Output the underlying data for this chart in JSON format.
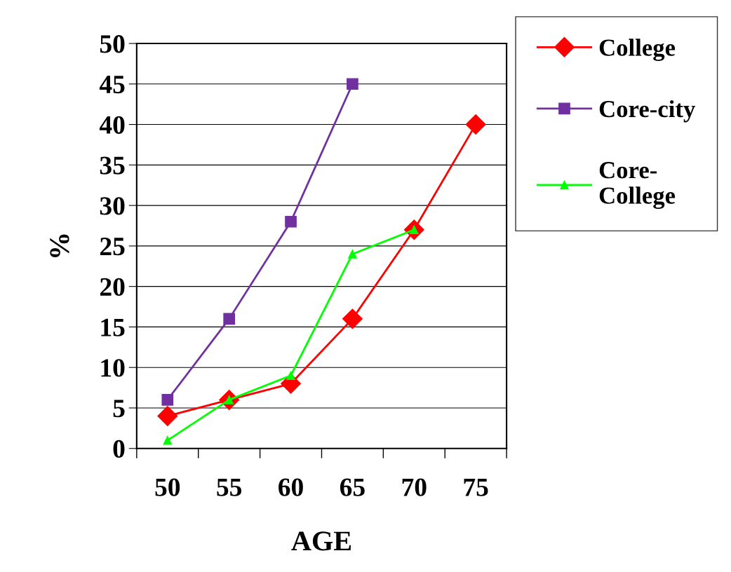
{
  "chart_data": {
    "type": "line",
    "xlabel": "AGE",
    "ylabel": "%",
    "categories": [
      "50",
      "55",
      "60",
      "65",
      "70",
      "75"
    ],
    "series": [
      {
        "name": "College",
        "color": "#ff0000",
        "marker": "diamond",
        "values": [
          4,
          6,
          8,
          16,
          27,
          40
        ]
      },
      {
        "name": "Core-city",
        "color": "#7030a0",
        "marker": "square",
        "values": [
          6,
          16,
          28,
          45,
          null,
          null
        ]
      },
      {
        "name": "Core-\nCollege",
        "color": "#00ff00",
        "marker": "triangle",
        "values": [
          1,
          6,
          9,
          24,
          27,
          null
        ]
      }
    ],
    "ylim": [
      0,
      50
    ],
    "yticks": [
      0,
      5,
      10,
      15,
      20,
      25,
      30,
      35,
      40,
      45,
      50
    ],
    "grid": "y",
    "legend": "top right"
  }
}
